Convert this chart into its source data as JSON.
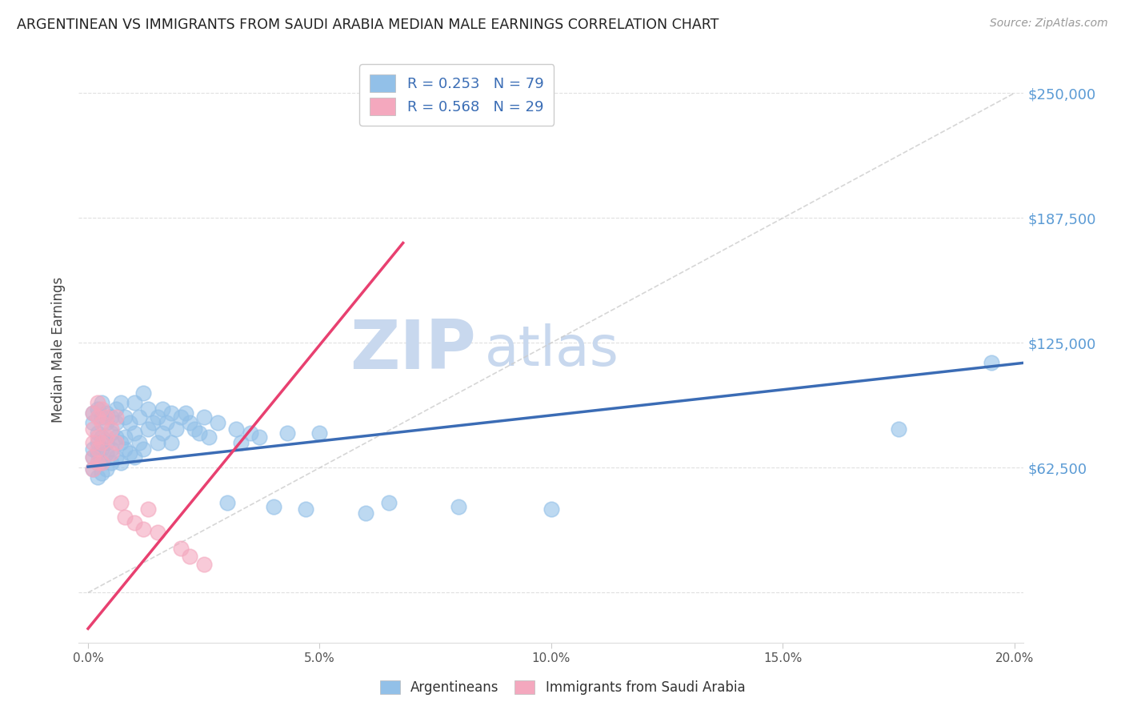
{
  "title": "ARGENTINEAN VS IMMIGRANTS FROM SAUDI ARABIA MEDIAN MALE EARNINGS CORRELATION CHART",
  "source": "Source: ZipAtlas.com",
  "ylabel": "Median Male Earnings",
  "xlim": [
    -0.002,
    0.202
  ],
  "ylim": [
    -25000,
    268000
  ],
  "yticks": [
    0,
    62500,
    125000,
    187500,
    250000
  ],
  "ytick_labels_right": [
    "$62,500",
    "$125,000",
    "$187,500",
    "$250,000"
  ],
  "xticks": [
    0.0,
    0.05,
    0.1,
    0.15,
    0.2
  ],
  "xtick_labels": [
    "0.0%",
    "5.0%",
    "10.0%",
    "15.0%",
    "20.0%"
  ],
  "R_blue": 0.253,
  "N_blue": 79,
  "R_pink": 0.568,
  "N_pink": 29,
  "blue_color": "#92C0E8",
  "pink_color": "#F4A8BE",
  "trend_blue": "#3B6CB5",
  "trend_pink": "#E84070",
  "watermark_color": "#C8D8EE",
  "blue_trend_x0": 0.0,
  "blue_trend_y0": 63000,
  "blue_trend_x1": 0.202,
  "blue_trend_y1": 115000,
  "pink_trend_x0": 0.0,
  "pink_trend_y0": -18000,
  "pink_trend_x1": 0.068,
  "pink_trend_y1": 175000,
  "blue_scatter_x": [
    0.001,
    0.001,
    0.001,
    0.001,
    0.001,
    0.002,
    0.002,
    0.002,
    0.002,
    0.002,
    0.002,
    0.003,
    0.003,
    0.003,
    0.003,
    0.003,
    0.003,
    0.004,
    0.004,
    0.004,
    0.004,
    0.004,
    0.005,
    0.005,
    0.005,
    0.005,
    0.006,
    0.006,
    0.006,
    0.006,
    0.007,
    0.007,
    0.007,
    0.008,
    0.008,
    0.008,
    0.009,
    0.009,
    0.01,
    0.01,
    0.01,
    0.011,
    0.011,
    0.012,
    0.012,
    0.013,
    0.013,
    0.014,
    0.015,
    0.015,
    0.016,
    0.016,
    0.017,
    0.018,
    0.018,
    0.019,
    0.02,
    0.021,
    0.022,
    0.023,
    0.024,
    0.025,
    0.026,
    0.028,
    0.03,
    0.032,
    0.033,
    0.035,
    0.037,
    0.04,
    0.043,
    0.047,
    0.05,
    0.06,
    0.065,
    0.08,
    0.1,
    0.175,
    0.195
  ],
  "blue_scatter_y": [
    72000,
    68000,
    85000,
    62000,
    90000,
    75000,
    65000,
    80000,
    70000,
    92000,
    58000,
    88000,
    72000,
    65000,
    78000,
    95000,
    60000,
    85000,
    70000,
    75000,
    90000,
    62000,
    80000,
    88000,
    72000,
    65000,
    92000,
    78000,
    68000,
    85000,
    75000,
    95000,
    65000,
    88000,
    72000,
    78000,
    85000,
    70000,
    95000,
    80000,
    68000,
    88000,
    75000,
    100000,
    72000,
    92000,
    82000,
    85000,
    88000,
    75000,
    92000,
    80000,
    85000,
    90000,
    75000,
    82000,
    88000,
    90000,
    85000,
    82000,
    80000,
    88000,
    78000,
    85000,
    45000,
    82000,
    75000,
    80000,
    78000,
    43000,
    80000,
    42000,
    80000,
    40000,
    45000,
    43000,
    42000,
    82000,
    115000
  ],
  "pink_scatter_x": [
    0.001,
    0.001,
    0.001,
    0.001,
    0.001,
    0.002,
    0.002,
    0.002,
    0.002,
    0.002,
    0.003,
    0.003,
    0.003,
    0.003,
    0.004,
    0.004,
    0.005,
    0.005,
    0.006,
    0.006,
    0.007,
    0.008,
    0.01,
    0.012,
    0.013,
    0.015,
    0.02,
    0.022,
    0.025
  ],
  "pink_scatter_y": [
    68000,
    75000,
    82000,
    90000,
    62000,
    78000,
    65000,
    88000,
    72000,
    95000,
    85000,
    75000,
    92000,
    65000,
    88000,
    78000,
    82000,
    70000,
    88000,
    75000,
    45000,
    38000,
    35000,
    32000,
    42000,
    30000,
    22000,
    18000,
    14000
  ]
}
